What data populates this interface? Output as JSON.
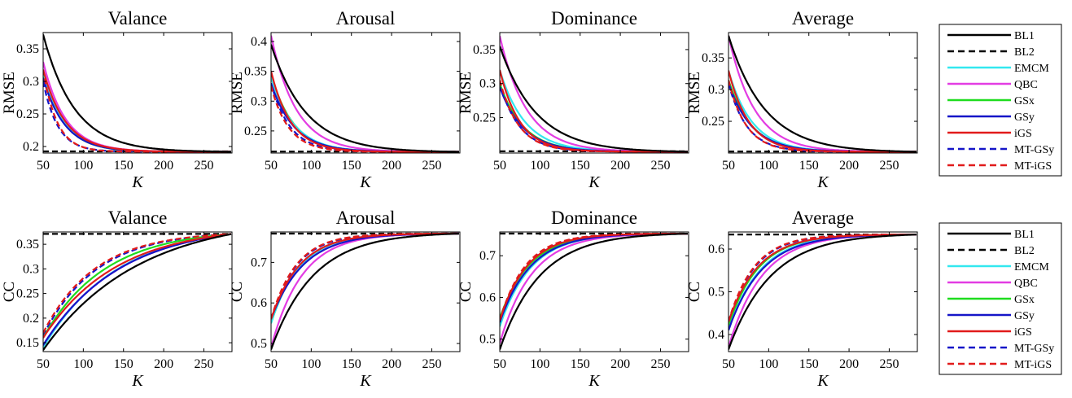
{
  "chart_data": [
    {
      "type": "line",
      "row": "RMSE",
      "title": "Valance",
      "xlabel": "K",
      "ylabel": "RMSE",
      "xlim": [
        50,
        285
      ],
      "ylim": [
        0.19,
        0.375
      ],
      "xticks": [
        50,
        100,
        150,
        200,
        250
      ],
      "yticks": [
        0.2,
        0.25,
        0.3,
        0.35
      ],
      "ytick_labels": [
        "0.2",
        "0.25",
        "0.3",
        "0.35"
      ],
      "floor": 0.192,
      "series": [
        {
          "name": "BL1",
          "start": 0.372,
          "rate": 0.0255
        },
        {
          "name": "BL2",
          "flat": 0.1925
        },
        {
          "name": "EMCM",
          "start": 0.315,
          "rate": 0.038
        },
        {
          "name": "QBC",
          "start": 0.33,
          "rate": 0.036
        },
        {
          "name": "GSx",
          "start": 0.31,
          "rate": 0.038
        },
        {
          "name": "GSy",
          "start": 0.305,
          "rate": 0.037
        },
        {
          "name": "iGS",
          "start": 0.318,
          "rate": 0.036
        },
        {
          "name": "MT-GSy",
          "start": 0.3,
          "rate": 0.055
        },
        {
          "name": "MT-iGS",
          "start": 0.318,
          "rate": 0.058
        }
      ]
    },
    {
      "type": "line",
      "row": "RMSE",
      "title": "Arousal",
      "xlabel": "K",
      "ylabel": "RMSE",
      "xlim": [
        50,
        285
      ],
      "ylim": [
        0.213,
        0.415
      ],
      "xticks": [
        50,
        100,
        150,
        200,
        250
      ],
      "yticks": [
        0.25,
        0.3,
        0.35,
        0.4
      ],
      "ytick_labels": [
        "0.25",
        "0.3",
        "0.35",
        "0.4"
      ],
      "floor": 0.215,
      "series": [
        {
          "name": "BL1",
          "start": 0.395,
          "rate": 0.023
        },
        {
          "name": "BL2",
          "flat": 0.2155
        },
        {
          "name": "EMCM",
          "start": 0.34,
          "rate": 0.035
        },
        {
          "name": "QBC",
          "start": 0.41,
          "rate": 0.032
        },
        {
          "name": "GSx",
          "start": 0.345,
          "rate": 0.036
        },
        {
          "name": "GSy",
          "start": 0.33,
          "rate": 0.035
        },
        {
          "name": "iGS",
          "start": 0.35,
          "rate": 0.04
        },
        {
          "name": "MT-GSy",
          "start": 0.33,
          "rate": 0.042
        },
        {
          "name": "MT-iGS",
          "start": 0.325,
          "rate": 0.045
        }
      ]
    },
    {
      "type": "line",
      "row": "RMSE",
      "title": "Dominance",
      "xlabel": "K",
      "ylabel": "RMSE",
      "xlim": [
        50,
        285
      ],
      "ylim": [
        0.198,
        0.375
      ],
      "xticks": [
        50,
        100,
        150,
        200,
        250
      ],
      "yticks": [
        0.25,
        0.3,
        0.35
      ],
      "ytick_labels": [
        "0.25",
        "0.3",
        "0.35"
      ],
      "floor": 0.2,
      "series": [
        {
          "name": "BL1",
          "start": 0.355,
          "rate": 0.022
        },
        {
          "name": "BL2",
          "flat": 0.2005
        },
        {
          "name": "EMCM",
          "start": 0.32,
          "rate": 0.032
        },
        {
          "name": "QBC",
          "start": 0.37,
          "rate": 0.03
        },
        {
          "name": "GSx",
          "start": 0.3,
          "rate": 0.034
        },
        {
          "name": "GSy",
          "start": 0.295,
          "rate": 0.034
        },
        {
          "name": "iGS",
          "start": 0.32,
          "rate": 0.04
        },
        {
          "name": "MT-GSy",
          "start": 0.3,
          "rate": 0.04
        },
        {
          "name": "MT-iGS",
          "start": 0.305,
          "rate": 0.042
        }
      ]
    },
    {
      "type": "line",
      "row": "RMSE",
      "title": "Average",
      "xlabel": "K",
      "ylabel": "RMSE",
      "xlim": [
        50,
        285
      ],
      "ylim": [
        0.2,
        0.39
      ],
      "xticks": [
        50,
        100,
        150,
        200,
        250
      ],
      "yticks": [
        0.25,
        0.3,
        0.35
      ],
      "ytick_labels": [
        "0.25",
        "0.3",
        "0.35"
      ],
      "floor": 0.202,
      "series": [
        {
          "name": "BL1",
          "start": 0.385,
          "rate": 0.022
        },
        {
          "name": "BL2",
          "flat": 0.2025
        },
        {
          "name": "EMCM",
          "start": 0.33,
          "rate": 0.034
        },
        {
          "name": "QBC",
          "start": 0.385,
          "rate": 0.031
        },
        {
          "name": "GSx",
          "start": 0.315,
          "rate": 0.035
        },
        {
          "name": "GSy",
          "start": 0.31,
          "rate": 0.034
        },
        {
          "name": "iGS",
          "start": 0.33,
          "rate": 0.039
        },
        {
          "name": "MT-GSy",
          "start": 0.31,
          "rate": 0.043
        },
        {
          "name": "MT-iGS",
          "start": 0.315,
          "rate": 0.045
        }
      ]
    },
    {
      "type": "line",
      "row": "CC",
      "title": "Valance",
      "xlabel": "K",
      "ylabel": "CC",
      "xlim": [
        50,
        285
      ],
      "ylim": [
        0.132,
        0.375
      ],
      "xticks": [
        50,
        100,
        150,
        200,
        250
      ],
      "yticks": [
        0.15,
        0.2,
        0.25,
        0.3,
        0.35
      ],
      "ytick_labels": [
        "0.15",
        "0.2",
        "0.25",
        "0.3",
        "0.35"
      ],
      "ceil": 0.371,
      "series": [
        {
          "name": "BL1",
          "start": 0.135,
          "rate": 0.0085
        },
        {
          "name": "BL2",
          "flat": 0.371
        },
        {
          "name": "EMCM",
          "start": 0.14,
          "rate": 0.011
        },
        {
          "name": "QBC",
          "start": 0.145,
          "rate": 0.0105
        },
        {
          "name": "GSx",
          "start": 0.16,
          "rate": 0.013
        },
        {
          "name": "GSy",
          "start": 0.145,
          "rate": 0.0105
        },
        {
          "name": "iGS",
          "start": 0.16,
          "rate": 0.011
        },
        {
          "name": "MT-GSy",
          "start": 0.165,
          "rate": 0.015
        },
        {
          "name": "MT-iGS",
          "start": 0.17,
          "rate": 0.0155
        }
      ]
    },
    {
      "type": "line",
      "row": "CC",
      "title": "Arousal",
      "xlabel": "K",
      "ylabel": "CC",
      "xlim": [
        50,
        285
      ],
      "ylim": [
        0.48,
        0.775
      ],
      "xticks": [
        50,
        100,
        150,
        200,
        250
      ],
      "yticks": [
        0.5,
        0.6,
        0.7
      ],
      "ytick_labels": [
        "0.5",
        "0.6",
        "0.7"
      ],
      "ceil": 0.771,
      "series": [
        {
          "name": "BL1",
          "start": 0.485,
          "rate": 0.019
        },
        {
          "name": "BL2",
          "flat": 0.771
        },
        {
          "name": "EMCM",
          "start": 0.55,
          "rate": 0.028
        },
        {
          "name": "QBC",
          "start": 0.49,
          "rate": 0.026
        },
        {
          "name": "GSx",
          "start": 0.55,
          "rate": 0.028
        },
        {
          "name": "GSy",
          "start": 0.56,
          "rate": 0.025
        },
        {
          "name": "iGS",
          "start": 0.56,
          "rate": 0.028
        },
        {
          "name": "MT-GSy",
          "start": 0.56,
          "rate": 0.031
        },
        {
          "name": "MT-iGS",
          "start": 0.56,
          "rate": 0.032
        }
      ]
    },
    {
      "type": "line",
      "row": "CC",
      "title": "Dominance",
      "xlabel": "K",
      "ylabel": "CC",
      "xlim": [
        50,
        285
      ],
      "ylim": [
        0.47,
        0.757
      ],
      "xticks": [
        50,
        100,
        150,
        200,
        250
      ],
      "yticks": [
        0.5,
        0.6,
        0.7
      ],
      "ytick_labels": [
        "0.5",
        "0.6",
        "0.7"
      ],
      "ceil": 0.753,
      "series": [
        {
          "name": "BL1",
          "start": 0.475,
          "rate": 0.02
        },
        {
          "name": "BL2",
          "flat": 0.753
        },
        {
          "name": "EMCM",
          "start": 0.53,
          "rate": 0.026
        },
        {
          "name": "QBC",
          "start": 0.49,
          "rate": 0.025
        },
        {
          "name": "GSx",
          "start": 0.55,
          "rate": 0.027
        },
        {
          "name": "GSy",
          "start": 0.54,
          "rate": 0.026
        },
        {
          "name": "iGS",
          "start": 0.545,
          "rate": 0.029
        },
        {
          "name": "MT-GSy",
          "start": 0.545,
          "rate": 0.03
        },
        {
          "name": "MT-iGS",
          "start": 0.545,
          "rate": 0.031
        }
      ]
    },
    {
      "type": "line",
      "row": "CC",
      "title": "Average",
      "xlabel": "K",
      "ylabel": "CC",
      "xlim": [
        50,
        285
      ],
      "ylim": [
        0.36,
        0.64
      ],
      "xticks": [
        50,
        100,
        150,
        200,
        250
      ],
      "yticks": [
        0.4,
        0.5,
        0.6
      ],
      "ytick_labels": [
        "0.4",
        "0.5",
        "0.6"
      ],
      "ceil": 0.634,
      "series": [
        {
          "name": "BL1",
          "start": 0.365,
          "rate": 0.019
        },
        {
          "name": "BL2",
          "flat": 0.634
        },
        {
          "name": "EMCM",
          "start": 0.41,
          "rate": 0.025
        },
        {
          "name": "QBC",
          "start": 0.37,
          "rate": 0.024
        },
        {
          "name": "GSx",
          "start": 0.42,
          "rate": 0.027
        },
        {
          "name": "GSy",
          "start": 0.41,
          "rate": 0.024
        },
        {
          "name": "iGS",
          "start": 0.43,
          "rate": 0.027
        },
        {
          "name": "MT-GSy",
          "start": 0.43,
          "rate": 0.03
        },
        {
          "name": "MT-iGS",
          "start": 0.43,
          "rate": 0.031
        }
      ]
    }
  ],
  "legend": [
    {
      "name": "BL1",
      "color": "#000000",
      "dash": false
    },
    {
      "name": "BL2",
      "color": "#000000",
      "dash": true
    },
    {
      "name": "EMCM",
      "color": "#33e8ef",
      "dash": false
    },
    {
      "name": "QBC",
      "color": "#e33de3",
      "dash": false
    },
    {
      "name": "GSx",
      "color": "#1fdc1f",
      "dash": false
    },
    {
      "name": "GSy",
      "color": "#1515c8",
      "dash": false
    },
    {
      "name": "iGS",
      "color": "#e11b1b",
      "dash": false
    },
    {
      "name": "MT-GSy",
      "color": "#1515c8",
      "dash": true
    },
    {
      "name": "MT-iGS",
      "color": "#e11b1b",
      "dash": true
    }
  ]
}
